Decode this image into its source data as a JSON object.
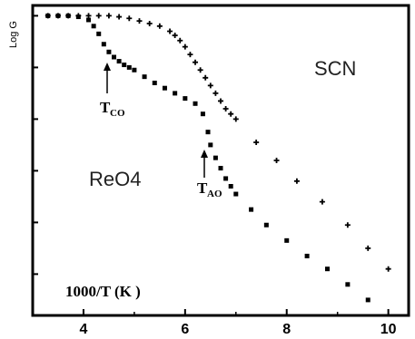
{
  "chart_data": {
    "type": "scatter",
    "ylabel": "Log G",
    "xticks": [
      "4",
      "6",
      "8",
      "10"
    ],
    "xlim": [
      3.0,
      10.4
    ],
    "ylim": [
      0,
      6
    ],
    "grid": false,
    "annotations": {
      "scn_label": "SCN",
      "reo4_label": "ReO4",
      "xaxis_caption": "1000/T (K  )",
      "tco_main": "T",
      "tco_sub": "CO",
      "tao_main": "T",
      "tao_sub": "AO"
    },
    "series": [
      {
        "name": "SCN",
        "marker": "plus",
        "x": [
          3.3,
          3.5,
          3.7,
          3.9,
          4.1,
          4.3,
          4.5,
          4.7,
          4.9,
          5.1,
          5.3,
          5.5,
          5.7,
          5.8,
          5.9,
          6.0,
          6.1,
          6.2,
          6.3,
          6.4,
          6.5,
          6.6,
          6.7,
          6.8,
          6.9,
          7.0,
          7.4,
          7.8,
          8.2,
          8.7,
          9.2,
          9.6,
          10.0
        ],
        "y": [
          5.8,
          5.8,
          5.8,
          5.8,
          5.8,
          5.8,
          5.8,
          5.78,
          5.75,
          5.7,
          5.65,
          5.6,
          5.5,
          5.42,
          5.32,
          5.2,
          5.05,
          4.9,
          4.75,
          4.6,
          4.45,
          4.3,
          4.15,
          4.0,
          3.9,
          3.8,
          3.35,
          3.0,
          2.6,
          2.2,
          1.75,
          1.3,
          0.9
        ]
      },
      {
        "name": "ReO4",
        "marker": "square",
        "x": [
          3.3,
          3.5,
          3.7,
          3.9,
          4.1,
          4.2,
          4.3,
          4.4,
          4.5,
          4.6,
          4.7,
          4.8,
          4.9,
          5.0,
          5.2,
          5.4,
          5.6,
          5.8,
          6.0,
          6.2,
          6.35,
          6.45,
          6.5,
          6.6,
          6.7,
          6.8,
          6.9,
          7.0,
          7.3,
          7.6,
          8.0,
          8.4,
          8.8,
          9.2,
          9.6
        ],
        "y": [
          5.8,
          5.8,
          5.8,
          5.78,
          5.72,
          5.6,
          5.45,
          5.25,
          5.1,
          5.0,
          4.92,
          4.85,
          4.8,
          4.75,
          4.62,
          4.5,
          4.4,
          4.3,
          4.2,
          4.1,
          3.9,
          3.55,
          3.3,
          3.05,
          2.85,
          2.65,
          2.5,
          2.35,
          2.05,
          1.75,
          1.45,
          1.15,
          0.9,
          0.6,
          0.3
        ]
      }
    ]
  }
}
